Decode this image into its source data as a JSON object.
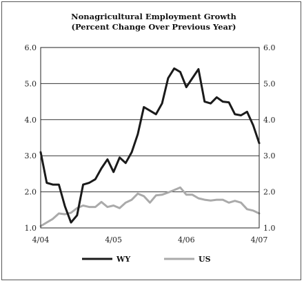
{
  "chart_data": {
    "type": "line",
    "title": "Nonagricultural Employment Growth",
    "subtitle": "(Percent Change Over Previous Year)",
    "xlabel": "",
    "ylabel": "",
    "x_tick_labels": [
      "4/04",
      "4/05",
      "4/06",
      "4/07"
    ],
    "y_tick_labels": [
      "1.0",
      "2.0",
      "3.0",
      "4.0",
      "5.0",
      "6.0"
    ],
    "ylim": [
      1.0,
      6.0
    ],
    "xlim": [
      0,
      36
    ],
    "grid": "horizontal",
    "legend_position": "bottom",
    "x": [
      0,
      1,
      2,
      3,
      4,
      5,
      6,
      7,
      8,
      9,
      10,
      11,
      12,
      13,
      14,
      15,
      16,
      17,
      18,
      19,
      20,
      21,
      22,
      23,
      24,
      25,
      26,
      27,
      28,
      29,
      30,
      31,
      32,
      33,
      34,
      35,
      36
    ],
    "series": [
      {
        "name": "WY",
        "color": "#1a1a1a",
        "values": [
          3.1,
          2.25,
          2.2,
          2.2,
          1.6,
          1.15,
          1.35,
          2.2,
          2.25,
          2.35,
          2.65,
          2.9,
          2.55,
          2.95,
          2.8,
          3.1,
          3.6,
          4.35,
          4.25,
          4.15,
          4.45,
          5.15,
          5.42,
          5.32,
          4.9,
          5.15,
          5.4,
          4.5,
          4.45,
          4.62,
          4.5,
          4.48,
          4.15,
          4.12,
          4.22,
          3.85,
          3.35
        ]
      },
      {
        "name": "US",
        "color": "#aaaaaa",
        "values": [
          1.05,
          1.15,
          1.25,
          1.4,
          1.38,
          1.42,
          1.55,
          1.62,
          1.58,
          1.58,
          1.72,
          1.58,
          1.62,
          1.55,
          1.7,
          1.78,
          1.95,
          1.88,
          1.7,
          1.9,
          1.92,
          1.98,
          2.05,
          2.12,
          1.92,
          1.92,
          1.82,
          1.78,
          1.76,
          1.78,
          1.78,
          1.7,
          1.75,
          1.7,
          1.52,
          1.48,
          1.4
        ]
      }
    ]
  }
}
